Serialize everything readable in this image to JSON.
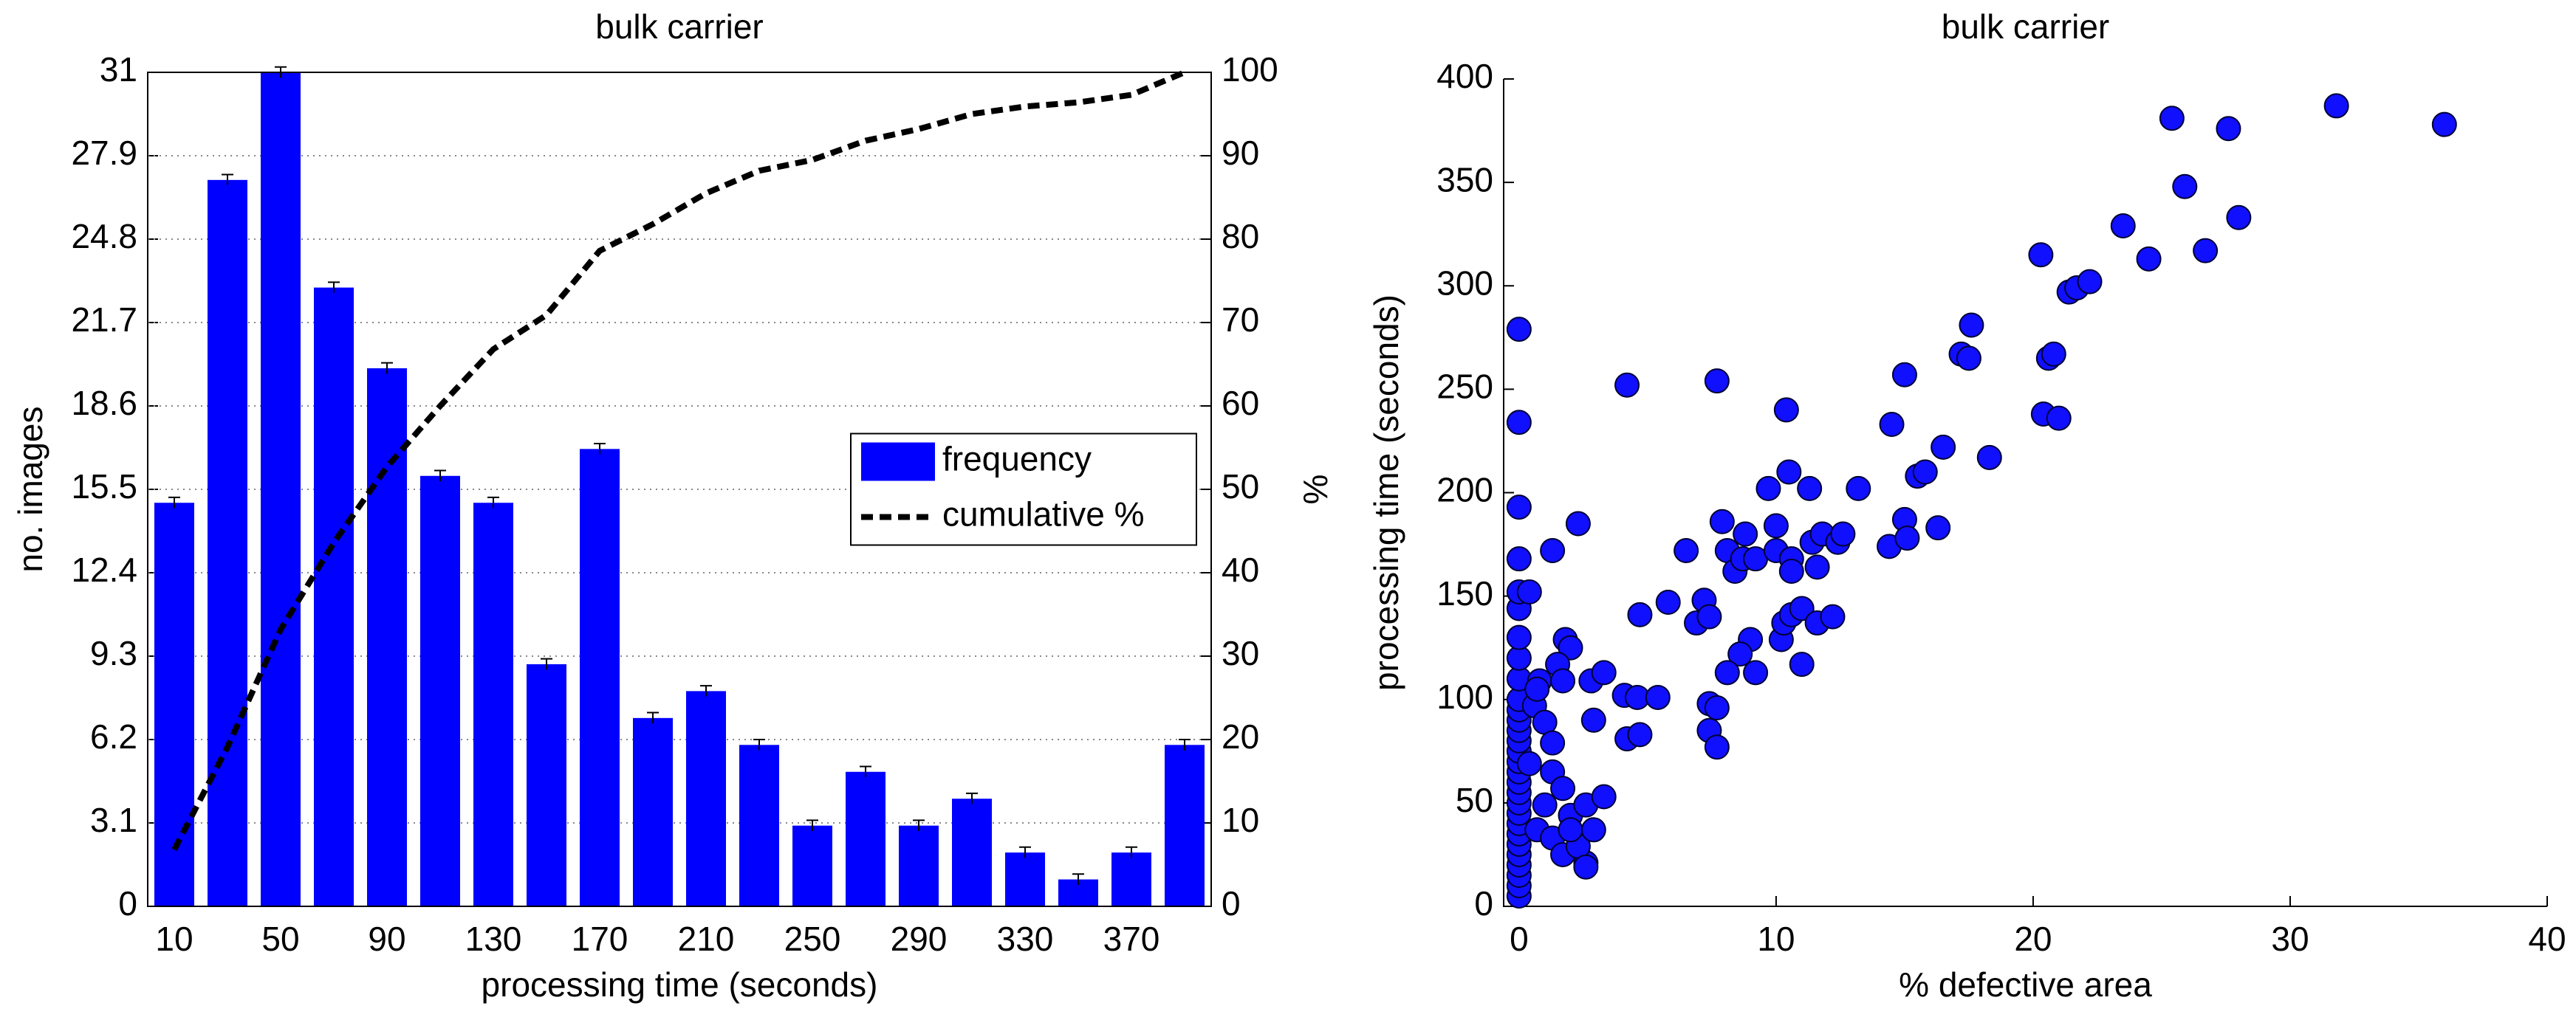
{
  "chart_data": [
    {
      "type": "bar",
      "title": "bulk carrier",
      "xlabel": "processing time (seconds)",
      "ylabel": "no. images",
      "y2label": "%",
      "categories": [
        10,
        null,
        50,
        null,
        90,
        null,
        130,
        null,
        170,
        null,
        210,
        null,
        250,
        null,
        290,
        null,
        330,
        null,
        370,
        null
      ],
      "series": [
        {
          "name": "frequency",
          "type": "bar",
          "color": "#0000ff",
          "values": [
            15,
            27,
            31,
            23,
            20,
            16,
            15,
            9,
            17,
            7,
            8,
            6,
            3,
            5,
            3,
            4,
            2,
            1,
            2,
            6
          ],
          "errors": [
            0.2,
            0.2,
            0.2,
            0.2,
            0.2,
            0.2,
            0.2,
            0.2,
            0.2,
            0.2,
            0.2,
            0.2,
            0.2,
            0.2,
            0.2,
            0.2,
            0.2,
            0.2,
            0.2,
            0.2
          ]
        },
        {
          "name": "cumulative %",
          "type": "line",
          "axis": "y2",
          "color": "#000000",
          "dashed": true,
          "values": [
            6.8,
            19.1,
            33.2,
            43.6,
            52.7,
            60,
            66.8,
            70.9,
            78.6,
            81.8,
            85.5,
            88.2,
            89.5,
            91.8,
            93.2,
            95,
            95.9,
            96.4,
            97.3,
            100
          ]
        }
      ],
      "ylim": [
        0,
        31
      ],
      "yticks": [
        0,
        3.1,
        6.2,
        9.3,
        12.4,
        15.5,
        18.6,
        21.7,
        24.8,
        27.9,
        31
      ],
      "y2lim": [
        0,
        100
      ],
      "y2ticks": [
        0,
        10,
        20,
        30,
        40,
        50,
        60,
        70,
        80,
        90,
        100
      ],
      "grid": true,
      "legend": "east"
    },
    {
      "type": "scatter",
      "title": "bulk carrier",
      "xlabel": "% defective area",
      "ylabel": "processing time (seconds)",
      "color": "#1010ff",
      "xlim": [
        -0.6,
        40
      ],
      "xticks": [
        0,
        10,
        20,
        30,
        40
      ],
      "ylim": [
        0,
        400
      ],
      "yticks": [
        0,
        50,
        100,
        150,
        200,
        250,
        300,
        350,
        400
      ],
      "grid": false,
      "x": [
        0,
        0,
        0,
        0,
        0,
        0,
        0,
        0,
        0,
        0,
        0,
        0,
        0,
        0,
        0,
        0,
        0,
        0,
        0,
        0,
        0,
        0,
        0,
        0,
        0,
        0,
        0,
        0,
        0,
        0.4,
        0.8,
        0.6,
        1.0,
        1.3,
        0.4,
        1.3,
        1.7,
        1.0,
        2.0,
        0.7,
        1.3,
        1.7,
        2.6,
        2.3,
        2.0,
        2.6,
        3.3,
        2.9,
        1.3,
        2.3,
        1.8,
        2.0,
        1.5,
        1.7,
        0.7,
        2.8,
        3.3,
        2.9,
        4.1,
        4.6,
        4.2,
        4.7,
        5.4,
        2.6,
        4.2,
        4.7,
        5.8,
        6.5,
        6.9,
        7.2,
        7.4,
        7.7,
        7.4,
        7.7,
        7.4,
        7.7,
        7.9,
        8.1,
        8.4,
        8.7,
        8.8,
        9.2,
        9.0,
        8.6,
        8.1,
        9.2,
        9.7,
        10.0,
        10.0,
        10.4,
        10.5,
        10.6,
        10.6,
        10.2,
        10.3,
        10.6,
        11.0,
        11.0,
        11.3,
        11.4,
        11.6,
        11.8,
        11.6,
        12.2,
        12.4,
        12.6,
        13.2,
        14.4,
        14.5,
        15.0,
        15.0,
        15.1,
        15.5,
        15.8,
        16.3,
        16.5,
        17.2,
        17.5,
        17.6,
        18.3,
        20.3,
        20.4,
        20.6,
        20.8,
        21.0,
        21.4,
        21.7,
        22.2,
        23.5,
        24.5,
        25.4,
        25.9,
        26.7,
        27.6,
        28.0,
        31.8,
        36.0
      ],
      "values": [
        5,
        10,
        15,
        20,
        25,
        30,
        35,
        40,
        45,
        50,
        55,
        60,
        65,
        70,
        75,
        80,
        85,
        90,
        95,
        100,
        110,
        120,
        130,
        144,
        152,
        168,
        193,
        234,
        279,
        152,
        109,
        97,
        89,
        79,
        69,
        65,
        57,
        49,
        44,
        37,
        33,
        25,
        21,
        29,
        37,
        49,
        53,
        37,
        172,
        185,
        129,
        125,
        117,
        109,
        105,
        109,
        113,
        90,
        102,
        101,
        81,
        83,
        101,
        19,
        252,
        141,
        147,
        172,
        137,
        148,
        140,
        254,
        98,
        96,
        85,
        77,
        186,
        172,
        162,
        168,
        180,
        168,
        129,
        122,
        113,
        113,
        202,
        184,
        172,
        240,
        210,
        168,
        162,
        129,
        137,
        141,
        144,
        117,
        202,
        176,
        164,
        180,
        137,
        140,
        176,
        180,
        202,
        174,
        233,
        257,
        187,
        178,
        208,
        210,
        183,
        222,
        267,
        265,
        281,
        217,
        315,
        238,
        265,
        267,
        236,
        297,
        299,
        302,
        329,
        313,
        381,
        348,
        317,
        376,
        333,
        387,
        378
      ]
    }
  ]
}
